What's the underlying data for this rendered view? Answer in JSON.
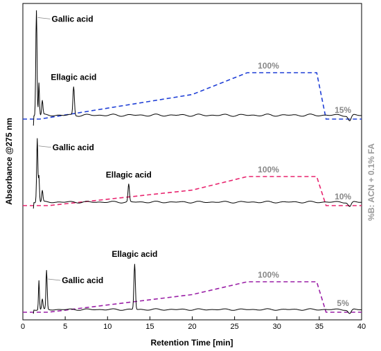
{
  "chart_data": {
    "type": "line",
    "xlabel": "Retention Time [min]",
    "ylabel": "Absorbance @275 nm",
    "y2label": "%B: ACN + 0.1% FA",
    "xlim": [
      0,
      40
    ],
    "xticks": [
      0,
      5,
      10,
      15,
      20,
      25,
      30,
      35,
      40
    ],
    "panels": [
      {
        "chromatogram": {
          "baseline": 0.08,
          "peaks": [
            {
              "label": "Gallic acid",
              "x": 1.6,
              "height": 0.98
            },
            {
              "label": "Ellagic acid",
              "x": 6.0,
              "height": 0.32
            }
          ]
        },
        "gradient": {
          "color": "#1f3fd6",
          "points": [
            [
              0,
              15
            ],
            [
              2,
              15
            ],
            [
              20,
              60
            ],
            [
              26.5,
              100
            ],
            [
              34.7,
              100
            ],
            [
              35.8,
              15
            ],
            [
              40,
              15
            ]
          ],
          "start_label": "15%",
          "end_label": "100%"
        }
      },
      {
        "chromatogram": {
          "baseline": 0.06,
          "peaks": [
            {
              "label": "Gallic acid",
              "x": 1.7,
              "height": 0.75
            },
            {
              "label": "Ellagic acid",
              "x": 12.5,
              "height": 0.25
            }
          ]
        },
        "gradient": {
          "color": "#e8246e",
          "points": [
            [
              0,
              10
            ],
            [
              3,
              10
            ],
            [
              20,
              58
            ],
            [
              26.5,
              100
            ],
            [
              34.7,
              100
            ],
            [
              35.8,
              10
            ],
            [
              40,
              10
            ]
          ],
          "start_label": "10%",
          "end_label": "100%"
        }
      },
      {
        "chromatogram": {
          "baseline": 0.04,
          "peaks": [
            {
              "label": "Gallic acid",
              "x": 2.8,
              "height": 0.5
            },
            {
              "label": "Ellagic acid",
              "x": 13.2,
              "height": 0.58
            }
          ]
        },
        "gradient": {
          "color": "#9a1fa6",
          "points": [
            [
              0,
              5
            ],
            [
              3,
              5
            ],
            [
              20,
              60
            ],
            [
              26.5,
              100
            ],
            [
              34.7,
              100
            ],
            [
              35.8,
              5
            ],
            [
              40,
              5
            ]
          ],
          "start_label": "5%",
          "end_label": "100%"
        }
      }
    ]
  }
}
